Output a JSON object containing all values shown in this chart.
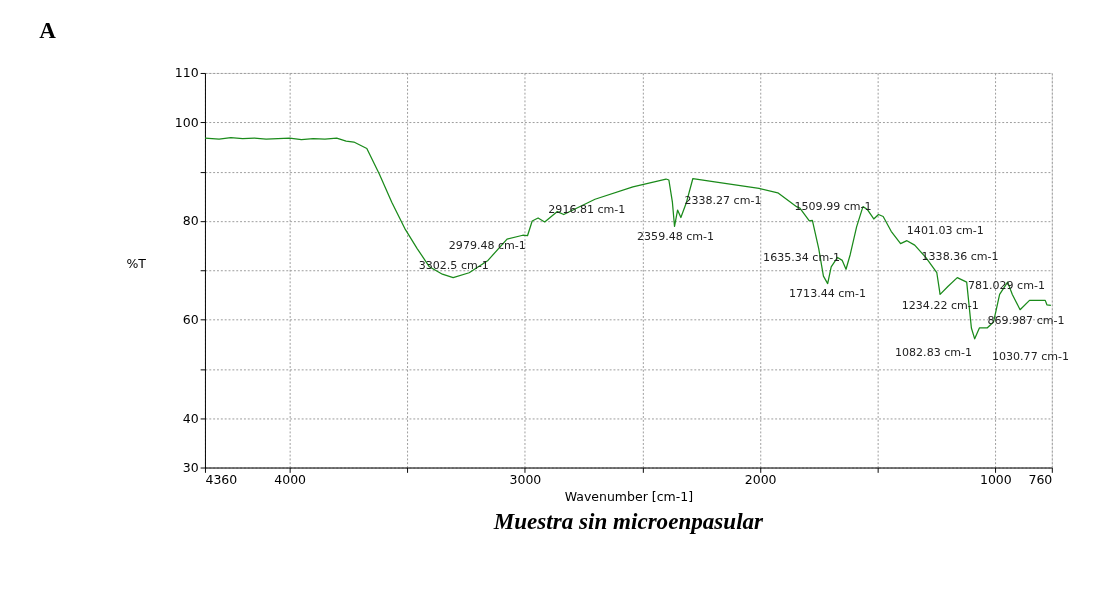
{
  "chart_data": {
    "type": "line",
    "title": "A",
    "xlabel": "Wavenumber [cm-1]",
    "ylabel": "%T",
    "x": [
      4360,
      4300,
      4250,
      4200,
      4150,
      4100,
      4050,
      4000,
      3950,
      3900,
      3850,
      3800,
      3760,
      3727,
      3672,
      3618,
      3566,
      3511,
      3458,
      3406,
      3351,
      3305,
      3237,
      3157,
      3076,
      3009,
      2989,
      2969,
      2944,
      2916,
      2862,
      2835,
      2702,
      2541,
      2400,
      2388,
      2373,
      2364,
      2351,
      2337,
      2313,
      2286,
      2193,
      2005,
      1925,
      1845,
      1831,
      1791,
      1778,
      1751,
      1731,
      1713,
      1698,
      1671,
      1651,
      1635,
      1617,
      1590,
      1563,
      1544,
      1517,
      1497,
      1477,
      1443,
      1403,
      1376,
      1343,
      1296,
      1249,
      1235,
      1202,
      1162,
      1122,
      1102,
      1088,
      1068,
      1035,
      1008,
      982,
      948,
      928,
      895,
      855,
      788,
      781,
      764
    ],
    "series": [
      {
        "color": "#1a8a1a",
        "values": [
          96.8,
          96.6,
          96.9,
          96.7,
          96.8,
          96.6,
          96.7,
          96.8,
          96.5,
          96.7,
          96.6,
          96.8,
          96.2,
          96.0,
          94.7,
          89.4,
          83.8,
          78.5,
          74.4,
          70.7,
          69.2,
          68.5,
          69.5,
          72.0,
          76.3,
          77.1,
          77.0,
          80.0,
          80.6,
          79.8,
          81.9,
          81.3,
          84.4,
          86.9,
          88.5,
          88.3,
          83.8,
          78.9,
          82.2,
          80.7,
          83.8,
          88.6,
          87.9,
          86.6,
          85.7,
          82.9,
          82.6,
          80.0,
          80.1,
          74.4,
          68.8,
          67.3,
          70.7,
          72.6,
          72.0,
          70.2,
          73.2,
          78.8,
          82.9,
          82.3,
          80.4,
          81.3,
          80.9,
          77.9,
          75.4,
          76.0,
          75.1,
          72.6,
          69.5,
          65.1,
          66.7,
          68.5,
          67.6,
          58.3,
          56.1,
          58.3,
          58.3,
          59.5,
          65.1,
          67.6,
          65.1,
          62.0,
          63.9,
          63.9,
          63.0,
          62.9
        ]
      }
    ],
    "xlim": [
      4360,
      760
    ],
    "xticks": [
      4360,
      4000,
      {
        "value": 3500,
        "label": null
      },
      3000,
      {
        "value": 2500,
        "label": null
      },
      2000,
      {
        "value": 1500,
        "label": null
      },
      1000,
      760
    ],
    "ylim": [
      30,
      110
    ],
    "yticks": [
      30,
      40,
      {
        "value": 50,
        "label": null
      },
      60,
      {
        "value": 70,
        "label": null
      },
      80,
      {
        "value": 90,
        "label": null
      },
      100,
      110
    ],
    "grid": true,
    "legend": false,
    "annotations": [
      {
        "text": "3302.5 cm-1",
        "x": 3302.5,
        "y": 68.5
      },
      {
        "text": "2979.48 cm-1",
        "x": 2979.48,
        "y": 77.2
      },
      {
        "text": "2916.81 cm-1",
        "x": 2916.81,
        "y": 79.8
      },
      {
        "text": "2359.48 cm-1",
        "x": 2359.48,
        "y": 79
      },
      {
        "text": "2338.27 cm-1",
        "x": 2338.27,
        "y": 81
      },
      {
        "text": "1713.44 cm-1",
        "x": 1713.44,
        "y": 67.5
      },
      {
        "text": "1635.34 cm-1",
        "x": 1635.34,
        "y": 70.5
      },
      {
        "text": "1509.99 cm-1",
        "x": 1509.99,
        "y": 80.5
      },
      {
        "text": "1401.03 cm-1",
        "x": 1401.03,
        "y": 75.5
      },
      {
        "text": "1338.36 cm-1",
        "x": 1338.36,
        "y": 75.1
      },
      {
        "text": "1234.22 cm-1",
        "x": 1234.22,
        "y": 65
      },
      {
        "text": "1082.83 cm-1",
        "x": 1082.83,
        "y": 56
      },
      {
        "text": "1030.77 cm-1",
        "x": 1030.77,
        "y": 58.3
      },
      {
        "text": "869.987 cm-1",
        "x": 869.987,
        "y": 62.5
      },
      {
        "text": "781.029 cm-1",
        "x": 781.029,
        "y": 63.2
      },
      "Muestra sin microenpasular"
    ]
  }
}
